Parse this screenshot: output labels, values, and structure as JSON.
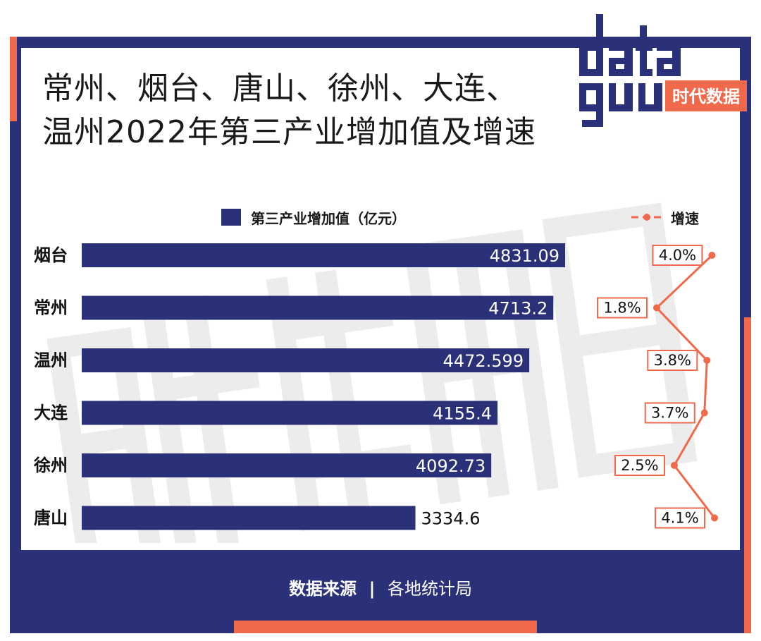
{
  "title_line1": "常州、烟台、唐山、徐州、大连、",
  "title_line2": "温州2022年第三产业增加值及增速",
  "brand": {
    "wordmark": "data guu",
    "cn_name": "时代数据"
  },
  "legend": {
    "bar_label": "第三产业增加值（亿元）",
    "line_label": "增速"
  },
  "footer": {
    "source_label": "数据来源",
    "separator": "|",
    "source_text": "各地统计局"
  },
  "colors": {
    "navy": "#2a3178",
    "coral": "#f0694b"
  },
  "chart_data": {
    "type": "bar",
    "orientation": "horizontal",
    "categories": [
      "烟台",
      "常州",
      "温州",
      "大连",
      "徐州",
      "唐山"
    ],
    "series": [
      {
        "name": "第三产业增加值（亿元）",
        "values": [
          4831.09,
          4713.2,
          4472.599,
          4155.4,
          4092.73,
          3334.6
        ],
        "labels": [
          "4831.09",
          "4713.2",
          "4472.599",
          "4155.4",
          "4092.73",
          "3334.6"
        ]
      },
      {
        "name": "增速",
        "type": "line",
        "values": [
          4.0,
          1.8,
          3.8,
          3.7,
          2.5,
          4.1
        ],
        "labels": [
          "4.0%",
          "1.8%",
          "3.8%",
          "3.7%",
          "2.5%",
          "4.1%"
        ]
      }
    ],
    "xlim": [
      0,
      5000
    ],
    "growth_range": [
      1.8,
      4.1
    ],
    "legend": "top",
    "grid": false
  }
}
